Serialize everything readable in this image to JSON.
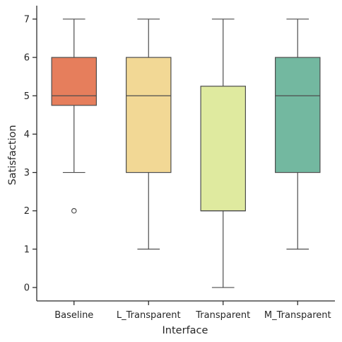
{
  "chart_data": {
    "type": "box",
    "xlabel": "Interface",
    "ylabel": "Satisfaction",
    "ylim": [
      -0.35,
      7.35
    ],
    "yticks": [
      0,
      1,
      2,
      3,
      4,
      5,
      6,
      7
    ],
    "grid": false,
    "categories": [
      "Baseline",
      "L_Transparent",
      "Transparent",
      "M_Transparent"
    ],
    "boxes": [
      {
        "category": "Baseline",
        "whisker_low": 3,
        "q1": 4.75,
        "median": 5,
        "q3": 6,
        "whisker_high": 7,
        "outliers": [
          2
        ],
        "color": "#e67e5c"
      },
      {
        "category": "L_Transparent",
        "whisker_low": 1,
        "q1": 3,
        "median": 5,
        "q3": 6,
        "whisker_high": 7,
        "outliers": [],
        "color": "#f2d895"
      },
      {
        "category": "Transparent",
        "whisker_low": 0,
        "q1": 2,
        "median": 2,
        "q3": 5.25,
        "whisker_high": 7,
        "outliers": [],
        "color": "#dfea9f"
      },
      {
        "category": "M_Transparent",
        "whisker_low": 1,
        "q1": 3,
        "median": 5,
        "q3": 6,
        "whisker_high": 7,
        "outliers": [],
        "color": "#73b8a0"
      }
    ]
  }
}
